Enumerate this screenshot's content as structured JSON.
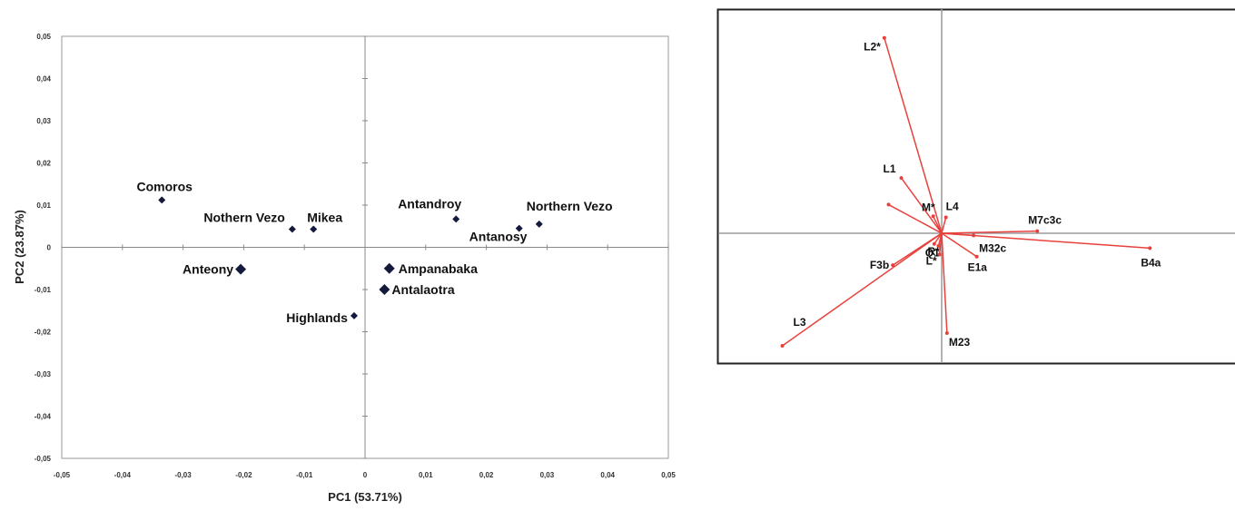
{
  "chart_data": [
    {
      "type": "scatter",
      "xlabel": "PC1 (53.71%)",
      "ylabel": "PC2 (23.87%)",
      "xlim": [
        -0.05,
        0.05
      ],
      "ylim": [
        -0.05,
        0.05
      ],
      "x_ticks": [
        "-0,05",
        "-0,04",
        "-0,03",
        "-0,02",
        "-0,01",
        "0",
        "0,01",
        "0,02",
        "0,03",
        "0,04",
        "0,05"
      ],
      "y_ticks": [
        "0,05",
        "0,04",
        "0,03",
        "0,02",
        "0,01",
        "0",
        "-0,01",
        "-0,02",
        "-0,03",
        "-0,04",
        "-0,05"
      ],
      "marker_color": "#141a3c",
      "points": [
        {
          "label": "Comoros",
          "x": -0.0335,
          "y": 0.0112
        },
        {
          "label": "Nothern Vezo",
          "x": -0.012,
          "y": 0.0043
        },
        {
          "label": "Mikea",
          "x": -0.0085,
          "y": 0.0043
        },
        {
          "label": "Antandroy",
          "x": 0.015,
          "y": 0.0067
        },
        {
          "label": "Northern Vezo",
          "x": 0.0287,
          "y": 0.0055
        },
        {
          "label": "Antanosy",
          "x": 0.0254,
          "y": 0.0045
        },
        {
          "label": "Anteony",
          "x": -0.0205,
          "y": -0.0052
        },
        {
          "label": "Ampanabaka",
          "x": 0.004,
          "y": -0.005
        },
        {
          "label": "Antalaotra",
          "x": 0.0032,
          "y": -0.01
        },
        {
          "label": "Highlands",
          "x": -0.0018,
          "y": -0.0162
        }
      ]
    },
    {
      "type": "line",
      "vector_color": "#e8413c",
      "vectors": [
        {
          "label": "L2*",
          "x": -0.54,
          "y": 1.84
        },
        {
          "label": "L1",
          "x": -0.38,
          "y": 0.52
        },
        {
          "label": "",
          "x": -0.5,
          "y": 0.27
        },
        {
          "label": "M*",
          "x": -0.08,
          "y": 0.16
        },
        {
          "label": "L4",
          "x": 0.04,
          "y": 0.15
        },
        {
          "label": "M7c3c",
          "x": 0.9,
          "y": 0.02
        },
        {
          "label": "B4a",
          "x": 1.96,
          "y": -0.14
        },
        {
          "label": "M32c",
          "x": 0.3,
          "y": -0.02
        },
        {
          "label": "E1a",
          "x": 0.33,
          "y": -0.22
        },
        {
          "label": "Q1",
          "x": -0.07,
          "y": -0.1
        },
        {
          "label": "R*",
          "x": -0.03,
          "y": -0.12
        },
        {
          "label": "L*",
          "x": -0.02,
          "y": -0.2
        },
        {
          "label": "F3b",
          "x": -0.46,
          "y": -0.3
        },
        {
          "label": "L3",
          "x": -1.5,
          "y": -1.06
        },
        {
          "label": "M23",
          "x": 0.05,
          "y": -0.94
        }
      ]
    }
  ]
}
